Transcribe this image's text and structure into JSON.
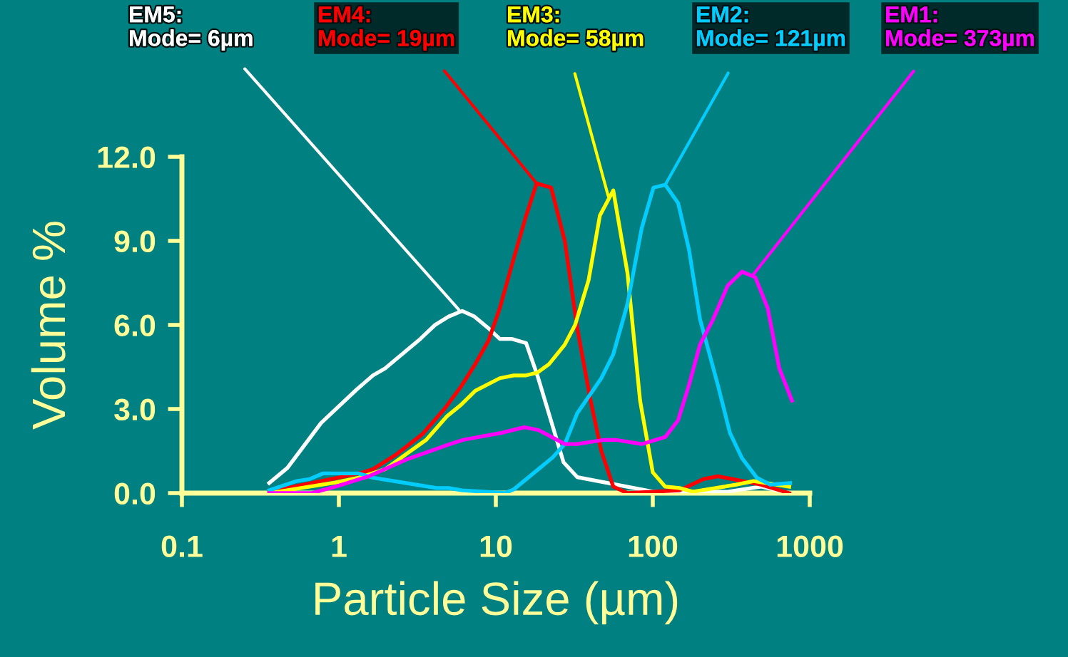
{
  "chart_data": {
    "type": "line",
    "xlabel": "Particle Size (µm)",
    "ylabel": "Volume %",
    "log": "x",
    "xlim": [
      0.1,
      1000
    ],
    "xticks": [
      0.1,
      1,
      10,
      100,
      1000
    ],
    "ylim": [
      0,
      12
    ],
    "yticks": [
      {
        "value": 0,
        "label": "0.0"
      },
      {
        "value": 3,
        "label": "3.0"
      },
      {
        "value": 6,
        "label": "6.0"
      },
      {
        "value": 9,
        "label": "9.0"
      },
      {
        "value": 12,
        "label": "12.0"
      }
    ],
    "grid": false,
    "legend": false,
    "marker": "none",
    "line_style": "solid",
    "series": [
      {
        "color": "#ffffff",
        "x": [
          0.36,
          0.47,
          0.77,
          1.3,
          1.65,
          1.97,
          3.3,
          4.1,
          5.0,
          6.1,
          7.3,
          8.9,
          10.6,
          12.7,
          15.6,
          18.4,
          27,
          33,
          101,
          300,
          490,
          740
        ],
        "values": [
          0.36,
          0.9,
          2.5,
          3.7,
          4.2,
          4.45,
          5.5,
          6.0,
          6.3,
          6.5,
          6.3,
          5.9,
          5.5,
          5.5,
          5.35,
          4.2,
          1.1,
          0.57,
          0.05,
          0.05,
          0.23,
          0.0
        ]
      },
      {
        "color": "#ff0000",
        "x": [
          0.36,
          0.67,
          1.34,
          1.65,
          2.35,
          3.4,
          4.7,
          6.0,
          7.3,
          9.0,
          10.6,
          12.6,
          15.6,
          18.2,
          22.5,
          27.5,
          33,
          40,
          47,
          56,
          69,
          148,
          210,
          260,
          490,
          740
        ],
        "values": [
          0.05,
          0.36,
          0.7,
          0.85,
          1.4,
          2.1,
          3.0,
          3.8,
          4.55,
          5.45,
          6.6,
          8.1,
          9.9,
          11.05,
          10.9,
          9.0,
          5.9,
          3.35,
          1.5,
          0.23,
          0.0,
          0.1,
          0.5,
          0.6,
          0.3,
          0.0
        ]
      },
      {
        "color": "#ffff00",
        "x": [
          0.36,
          0.95,
          1.34,
          1.97,
          2.7,
          3.6,
          4.9,
          6.0,
          7.4,
          10.6,
          13,
          15.6,
          18.4,
          21.8,
          27.5,
          32,
          39,
          46,
          56,
          69,
          83,
          100,
          120,
          148,
          180,
          340,
          440,
          740
        ],
        "values": [
          0.0,
          0.38,
          0.55,
          0.85,
          1.4,
          1.9,
          2.75,
          3.15,
          3.65,
          4.1,
          4.2,
          4.2,
          4.3,
          4.6,
          5.3,
          6.0,
          7.6,
          9.9,
          10.8,
          7.85,
          3.3,
          0.74,
          0.23,
          0.18,
          0.05,
          0.3,
          0.43,
          0.23
        ]
      },
      {
        "color": "#00ccff",
        "x": [
          0.36,
          0.54,
          0.65,
          0.79,
          1.34,
          1.65,
          4.2,
          5.0,
          6.1,
          11.4,
          13,
          23,
          27.5,
          33,
          47,
          56,
          69,
          85,
          101,
          120,
          145,
          170,
          200,
          260,
          310,
          370,
          460,
          560,
          750
        ],
        "values": [
          0.1,
          0.43,
          0.5,
          0.7,
          0.7,
          0.55,
          0.18,
          0.18,
          0.1,
          0.0,
          0.13,
          1.27,
          1.75,
          2.85,
          4.1,
          4.95,
          6.75,
          9.45,
          10.9,
          11.0,
          10.35,
          8.7,
          6.2,
          3.85,
          2.15,
          1.25,
          0.55,
          0.3,
          0.36
        ]
      },
      {
        "color": "#ff00ff",
        "x": [
          0.36,
          0.67,
          0.95,
          1.55,
          2.7,
          5.1,
          6.2,
          10.9,
          15.2,
          18.7,
          27.5,
          33,
          49,
          58,
          85,
          120,
          145,
          170,
          200,
          240,
          300,
          370,
          450,
          540,
          640,
          770
        ],
        "values": [
          0.0,
          0.0,
          0.23,
          0.6,
          1.2,
          1.75,
          1.9,
          2.15,
          2.35,
          2.25,
          1.75,
          1.75,
          1.9,
          1.9,
          1.75,
          2.0,
          2.6,
          3.85,
          5.3,
          6.15,
          7.4,
          7.9,
          7.7,
          6.6,
          4.45,
          3.3
        ]
      }
    ],
    "annotations": [
      {
        "text": "EM5:\nMode= 6µm",
        "x": 5.8,
        "y": 6.55
      },
      {
        "text": "EM4:\nMode= 19µm",
        "x": 18.2,
        "y": 11.05
      },
      {
        "text": "EM3:\nMode= 58µm",
        "x": 52,
        "y": 10.6
      },
      {
        "text": "EM2:\nMode= 121µm",
        "x": 120,
        "y": 11.0
      },
      {
        "text": "EM1:\nMode= 373µm",
        "x": 430,
        "y": 7.75
      }
    ]
  }
}
